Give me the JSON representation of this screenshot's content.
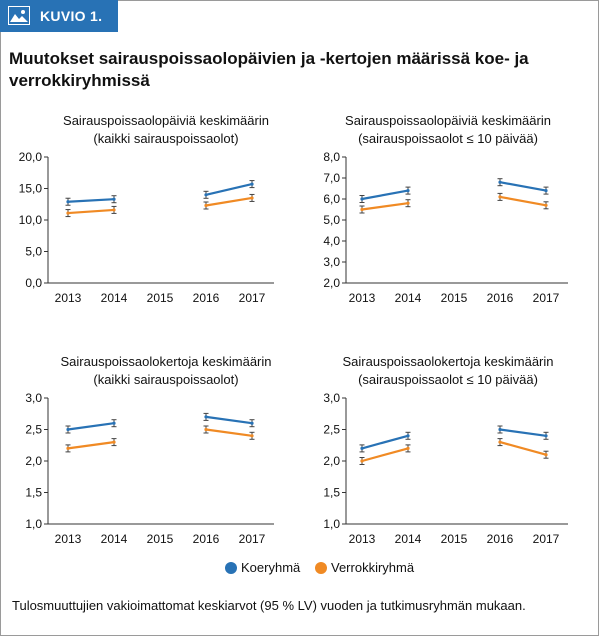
{
  "header": {
    "tab_label": "KUVIO 1.",
    "icon": "image-icon",
    "accent_color": "#2872b5"
  },
  "figure_title": "Muutokset sairauspoissaolopäivien ja -kertojen määrissä koe- ja verrokkiryhmissä",
  "caption": "Tulosmuuttujien vakioimattomat keskiarvot (95 % LV) vuoden ja tutkimusryhmän mukaan.",
  "legend": {
    "placement": "bottom-center",
    "items": [
      {
        "name": "Koeryhmä",
        "color": "#2872b5"
      },
      {
        "name": "Verrokkiryhmä",
        "color": "#f08a24"
      }
    ]
  },
  "chart_data": [
    {
      "type": "line",
      "title": [
        "Sairauspoissaolopäiviä keskimäärin",
        "(kaikki sairauspoissaolot)"
      ],
      "categories": [
        "2013",
        "2014",
        "2015",
        "2016",
        "2017"
      ],
      "ylim": [
        0,
        20
      ],
      "yticks": [
        "0,0",
        "5,0",
        "10,0",
        "15,0",
        "20,0"
      ],
      "ytick_values": [
        0,
        5,
        10,
        15,
        20
      ],
      "grid": false,
      "series": [
        {
          "name": "Koeryhmä",
          "color": "#2872b5",
          "values": [
            12.9,
            13.3,
            null,
            14.0,
            15.7
          ]
        },
        {
          "name": "Verrokkiryhmä",
          "color": "#f08a24",
          "values": [
            11.1,
            11.6,
            null,
            12.3,
            13.5
          ]
        }
      ]
    },
    {
      "type": "line",
      "title": [
        "Sairauspoissaolopäiviä keskimäärin",
        "(sairauspoissaolot ≤ 10 päivää)"
      ],
      "categories": [
        "2013",
        "2014",
        "2015",
        "2016",
        "2017"
      ],
      "ylim": [
        2,
        8
      ],
      "yticks": [
        "2,0",
        "3,0",
        "4,0",
        "5,0",
        "6,0",
        "7,0",
        "8,0"
      ],
      "ytick_values": [
        2,
        3,
        4,
        5,
        6,
        7,
        8
      ],
      "grid": false,
      "series": [
        {
          "name": "Koeryhmä",
          "color": "#2872b5",
          "values": [
            6.0,
            6.4,
            null,
            6.8,
            6.4
          ]
        },
        {
          "name": "Verrokkiryhmä",
          "color": "#f08a24",
          "values": [
            5.5,
            5.8,
            null,
            6.1,
            5.7
          ]
        }
      ]
    },
    {
      "type": "line",
      "title": [
        "Sairauspoissaolokertoja keskimäärin",
        "(kaikki sairauspoissaolot)"
      ],
      "categories": [
        "2013",
        "2014",
        "2015",
        "2016",
        "2017"
      ],
      "ylim": [
        1,
        3
      ],
      "yticks": [
        "1,0",
        "1,5",
        "2,0",
        "2,5",
        "3,0"
      ],
      "ytick_values": [
        1,
        1.5,
        2,
        2.5,
        3
      ],
      "grid": false,
      "series": [
        {
          "name": "Koeryhmä",
          "color": "#2872b5",
          "values": [
            2.5,
            2.6,
            null,
            2.7,
            2.6
          ]
        },
        {
          "name": "Verrokkiryhmä",
          "color": "#f08a24",
          "values": [
            2.2,
            2.3,
            null,
            2.5,
            2.4
          ]
        }
      ]
    },
    {
      "type": "line",
      "title": [
        "Sairauspoissaolokertoja keskimäärin",
        "(sairauspoissaolot ≤ 10 päivää)"
      ],
      "categories": [
        "2013",
        "2014",
        "2015",
        "2016",
        "2017"
      ],
      "ylim": [
        1,
        3
      ],
      "yticks": [
        "1,0",
        "1,5",
        "2,0",
        "2,5",
        "3,0"
      ],
      "ytick_values": [
        1,
        1.5,
        2,
        2.5,
        3
      ],
      "grid": false,
      "series": [
        {
          "name": "Koeryhmä",
          "color": "#2872b5",
          "values": [
            2.2,
            2.4,
            null,
            2.5,
            2.4
          ]
        },
        {
          "name": "Verrokkiryhmä",
          "color": "#f08a24",
          "values": [
            2.0,
            2.2,
            null,
            2.3,
            2.1
          ]
        }
      ]
    }
  ]
}
